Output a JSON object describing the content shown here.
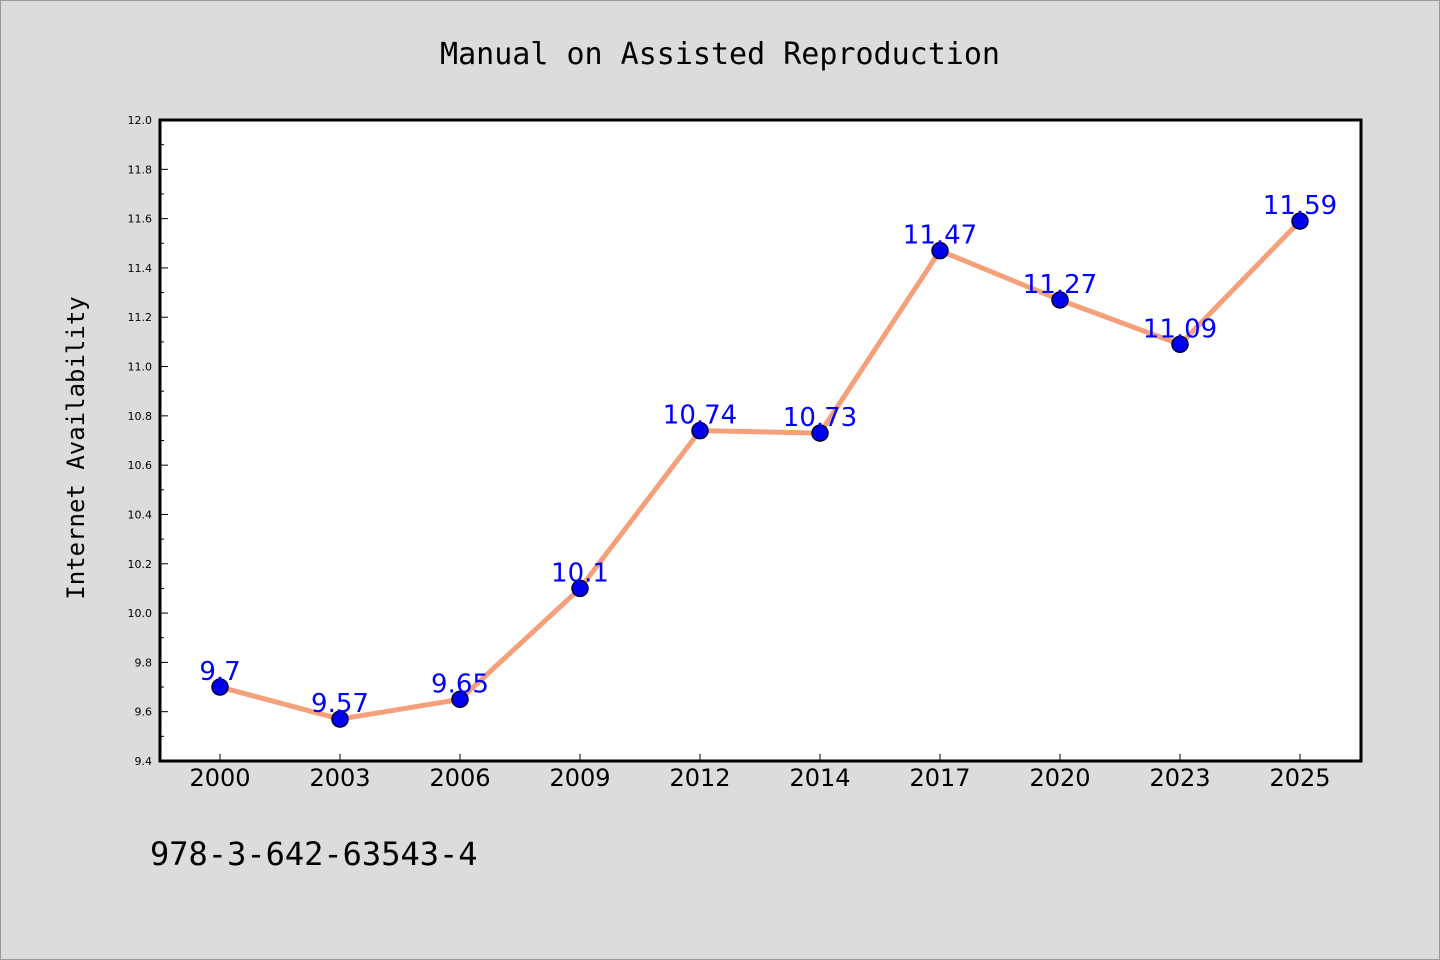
{
  "chart_data": {
    "type": "line",
    "title": "Manual on Assisted Reproduction",
    "xlabel": "",
    "ylabel": "Internet Availability",
    "categories": [
      "2000",
      "2003",
      "2006",
      "2009",
      "2012",
      "2014",
      "2017",
      "2020",
      "2023",
      "2025"
    ],
    "series": [
      {
        "values": [
          9.7,
          9.57,
          9.65,
          10.1,
          10.74,
          10.73,
          11.47,
          11.27,
          11.09,
          11.59
        ]
      }
    ],
    "data_labels": [
      "9.7",
      "9.57",
      "9.65",
      "10.1",
      "10.74",
      "10.73",
      "11.47",
      "11.27",
      "11.09",
      "11.59"
    ],
    "ylim": [
      9.4,
      12.0
    ],
    "yticks": [
      "9.4",
      "9.6",
      "9.8",
      "10.0",
      "10.2",
      "10.4",
      "10.6",
      "10.8",
      "11.0",
      "11.2",
      "11.4",
      "11.6",
      "11.8",
      "12.0"
    ],
    "grid": false,
    "legend": "none",
    "colors": {
      "line": "#f4a07a",
      "marker": "#0000ee",
      "marker_edge": "#000033",
      "label": "#0000ff",
      "background": "#dcdcdc",
      "plot_background": "#ffffff"
    }
  },
  "footer": {
    "isbn": "978-3-642-63543-4"
  }
}
